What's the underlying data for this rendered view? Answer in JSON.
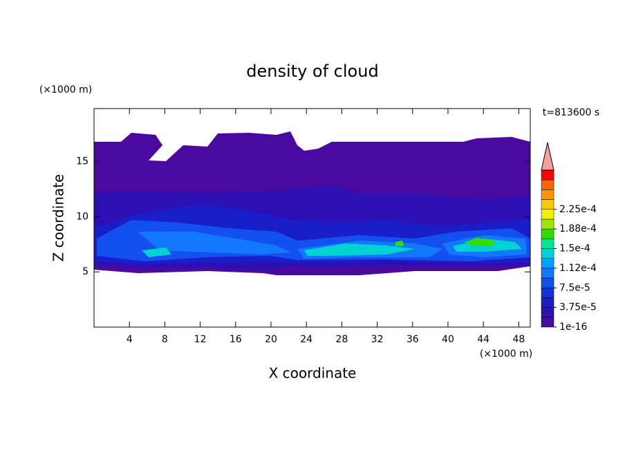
{
  "chart_data": {
    "type": "contour",
    "title": "density of cloud",
    "x_label": "X coordinate",
    "y_label": "Z coordinate",
    "x_unit": "(×1000 m)",
    "y_unit": "(×1000 m)",
    "time_label": "t=813600 s",
    "xlim": [
      0,
      49.3
    ],
    "ylim": [
      0,
      19.8
    ],
    "xticks": [
      4,
      8,
      12,
      16,
      20,
      24,
      28,
      32,
      36,
      40,
      44,
      48
    ],
    "yticks": [
      5,
      10,
      15
    ],
    "colorbar": {
      "colors": [
        "#4a0aa0",
        "#2c10b4",
        "#1a1ec8",
        "#1432dc",
        "#1450f0",
        "#1478ff",
        "#00a0ff",
        "#00d2d2",
        "#00e696",
        "#32dc00",
        "#a0e600",
        "#f0f000",
        "#ffc800",
        "#ff9600",
        "#ff6400",
        "#ff0000"
      ],
      "extend_color": "#f4a0a0",
      "ticks": [
        {
          "value": 1e-16,
          "label": "1e-16"
        },
        {
          "value": 3.75e-05,
          "label": "3.75e-5"
        },
        {
          "value": 7.5e-05,
          "label": "7.5e-5"
        },
        {
          "value": 0.0001125,
          "label": "1.12e-4"
        },
        {
          "value": 0.00015,
          "label": "1.5e-4"
        },
        {
          "value": 0.0001875,
          "label": "1.88e-4"
        },
        {
          "value": 0.000225,
          "label": "2.25e-4"
        }
      ]
    }
  }
}
